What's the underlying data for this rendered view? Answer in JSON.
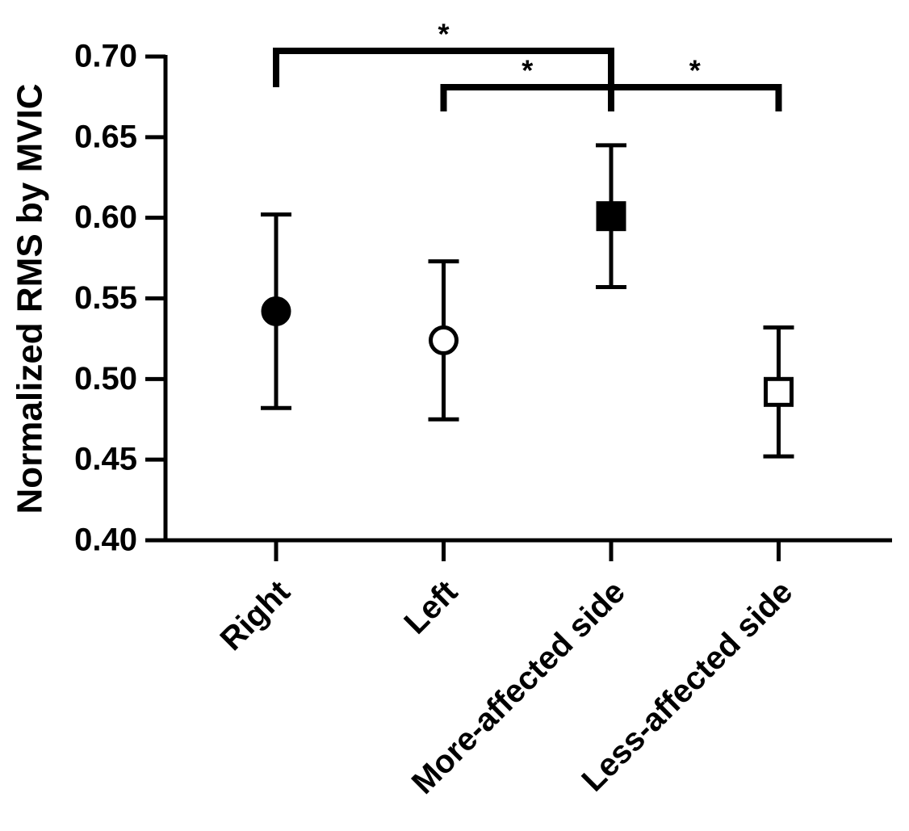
{
  "chart_data": {
    "type": "errorbar",
    "y_label": "Normalized RMS by MVIC",
    "categories": [
      "Right",
      "Left",
      "More-affected side",
      "Less-affected side"
    ],
    "values": [
      0.542,
      0.524,
      0.601,
      0.492
    ],
    "errors": [
      0.06,
      0.049,
      0.044,
      0.04
    ],
    "markers": [
      "circle",
      "circle",
      "square",
      "square"
    ],
    "filled": [
      true,
      false,
      true,
      false
    ],
    "color": "#000000",
    "ylim": [
      0.4,
      0.7
    ],
    "yticks": [
      {
        "value": 0.4,
        "label": "0.40"
      },
      {
        "value": 0.45,
        "label": "0.45"
      },
      {
        "value": 0.5,
        "label": "0.50"
      },
      {
        "value": 0.55,
        "label": "0.55"
      },
      {
        "value": 0.6,
        "label": "0.60"
      },
      {
        "value": 0.65,
        "label": "0.65"
      },
      {
        "value": 0.7,
        "label": "0.70"
      }
    ],
    "significance": [
      {
        "from": 0,
        "to": 2,
        "label": "*"
      },
      {
        "from": 1,
        "to": 2,
        "label": "*"
      },
      {
        "from": 2,
        "to": 3,
        "label": "*"
      }
    ]
  }
}
